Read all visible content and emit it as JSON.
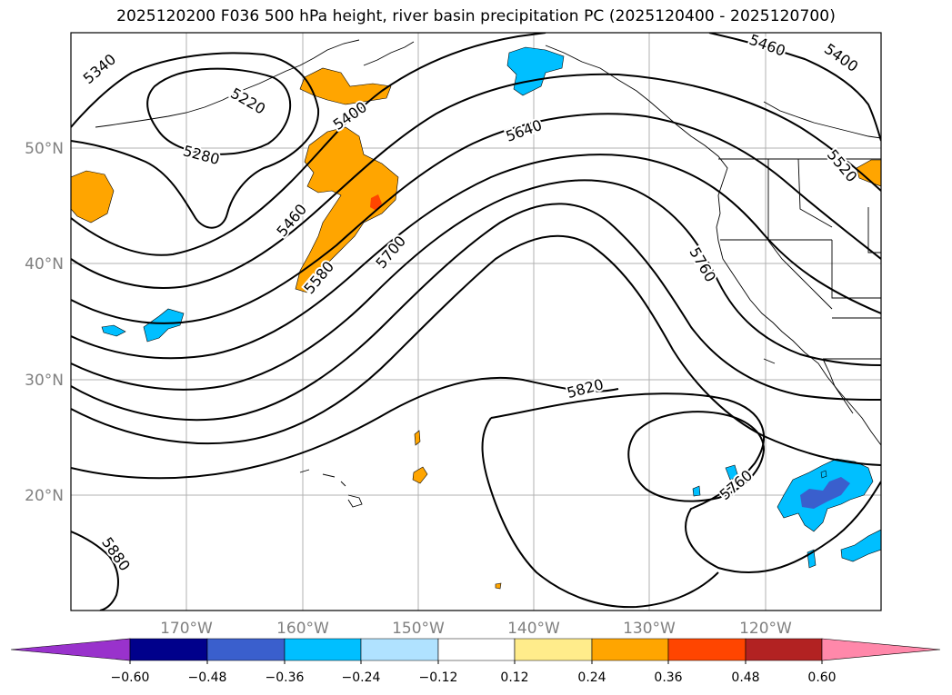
{
  "title": "2025120200 F036 500 hPa height, river basin precipitation PC (2025120400 - 2025120700)",
  "map": {
    "lat_labels": [
      "50°N",
      "40°N",
      "30°N",
      "20°N"
    ],
    "lon_labels": [
      "170°W",
      "160°W",
      "150°W",
      "140°W",
      "130°W",
      "120°W"
    ],
    "contour_labels": [
      "5340",
      "5220",
      "5280",
      "5400",
      "5460",
      "5580",
      "5640",
      "5700",
      "5760",
      "5820",
      "5760",
      "5880",
      "5460",
      "5400",
      "5520"
    ]
  },
  "colorbar": {
    "colors": [
      "#9932cc",
      "#00008b",
      "#3a5fcd",
      "#00bfff",
      "#b0e2ff",
      "#ffffff",
      "#ffec8b",
      "#ffa500",
      "#ff4500",
      "#b22222",
      "#ff88aa"
    ],
    "tick_labels": [
      "−0.60",
      "−0.48",
      "−0.36",
      "−0.24",
      "−0.12",
      "0.12",
      "0.24",
      "0.36",
      "0.48",
      "0.60"
    ]
  },
  "colors": {
    "positive_fill": "#ffa500",
    "negative_fill": "#00bfff",
    "contour": "#000000",
    "grid": "#b0b0b0"
  }
}
